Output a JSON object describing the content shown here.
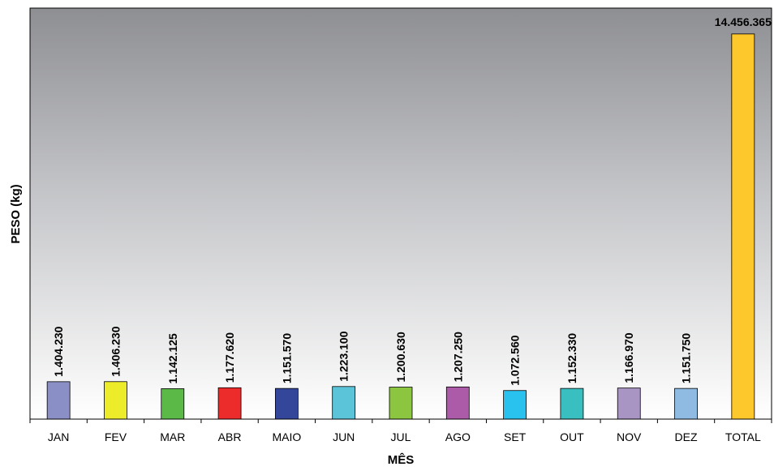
{
  "chart_data": {
    "type": "bar",
    "title": "",
    "xlabel": "MÊS",
    "ylabel": "PESO (kg)",
    "ylim": [
      0,
      15000000
    ],
    "grid": false,
    "legend": "none",
    "categories": [
      "JAN",
      "FEV",
      "MAR",
      "ABR",
      "MAIO",
      "JUN",
      "JUL",
      "AGO",
      "SET",
      "OUT",
      "NOV",
      "DEZ",
      "TOTAL"
    ],
    "values": [
      1404230,
      1406230,
      1142125,
      1177620,
      1151570,
      1223100,
      1200630,
      1207250,
      1072560,
      1152330,
      1166970,
      1151750,
      14456365
    ],
    "value_labels": [
      "1.404.230",
      "1.406.230",
      "1.142.125",
      "1.177.620",
      "1.151.570",
      "1.223.100",
      "1.200.630",
      "1.207.250",
      "1.072.560",
      "1.152.330",
      "1.166.970",
      "1.151.750",
      "14.456.365"
    ],
    "colors": [
      "#8a8fc6",
      "#ecec2a",
      "#5bb947",
      "#ec2b2b",
      "#33469a",
      "#5bc4d8",
      "#8cc640",
      "#ac5ba8",
      "#29c2ef",
      "#3abfc1",
      "#a995c4",
      "#8fbbe3",
      "#fdc82b"
    ]
  }
}
